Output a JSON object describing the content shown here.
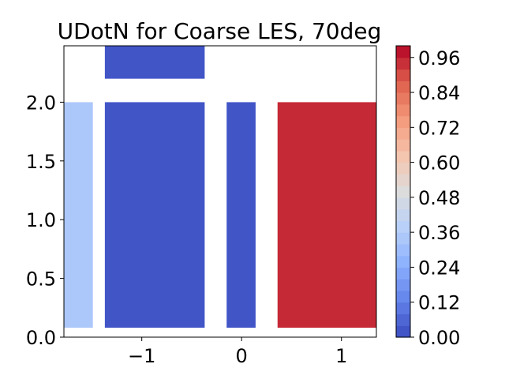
{
  "chart_data": {
    "type": "heatmap",
    "title": "UDotN for Coarse LES, 70deg",
    "xlabel": "",
    "ylabel": "",
    "xlim": [
      -1.78,
      1.35
    ],
    "ylim": [
      0.0,
      2.48
    ],
    "x_ticks": [
      -1,
      0,
      1
    ],
    "x_tick_labels": [
      "−1",
      "0",
      "1"
    ],
    "y_ticks": [
      0.0,
      0.5,
      1.0,
      1.5,
      2.0
    ],
    "y_tick_labels": [
      "0.0",
      "0.5",
      "1.0",
      "1.5",
      "2.0"
    ],
    "grid": false,
    "colormap": "coolwarm",
    "colorbar": {
      "vmin": 0.0,
      "vmax": 1.0,
      "levels": 25,
      "tick_values": [
        0.0,
        0.12,
        0.24,
        0.36,
        0.48,
        0.6,
        0.72,
        0.84,
        0.96
      ],
      "tick_labels": [
        "0.00",
        "0.12",
        "0.24",
        "0.36",
        "0.48",
        "0.60",
        "0.72",
        "0.84",
        "0.96"
      ]
    },
    "regions": [
      {
        "x": [
          -1.78,
          -1.49
        ],
        "y": [
          0.08,
          2.0
        ],
        "value": 0.34
      },
      {
        "x": [
          -1.37,
          -0.37
        ],
        "y": [
          0.08,
          2.0
        ],
        "value": 0.02
      },
      {
        "x": [
          -1.37,
          -0.37
        ],
        "y": [
          2.2,
          2.48
        ],
        "value": 0.02
      },
      {
        "x": [
          -0.15,
          0.14
        ],
        "y": [
          0.08,
          2.0
        ],
        "value": 0.02
      },
      {
        "x": [
          0.36,
          1.35
        ],
        "y": [
          0.08,
          2.0
        ],
        "value": 0.95
      }
    ]
  }
}
